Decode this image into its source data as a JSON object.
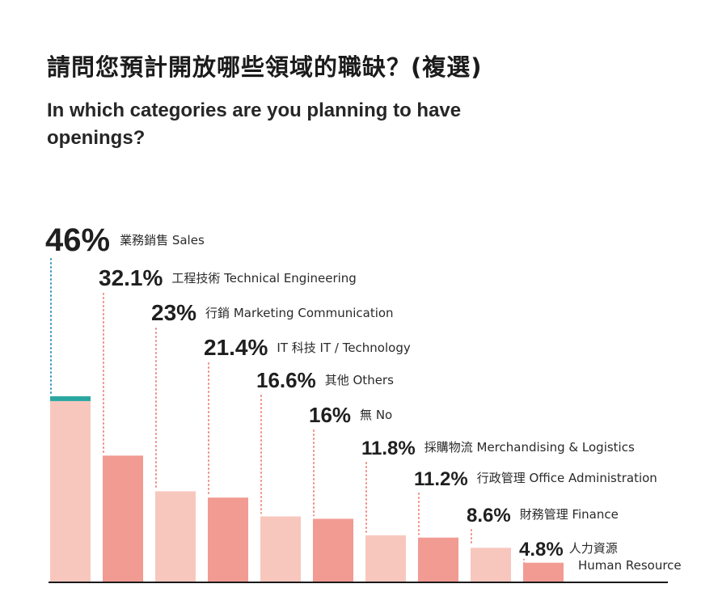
{
  "header": {
    "title_zh": "請問您預計開放哪些領域的職缺？(複選)",
    "title_en": "In which categories are you planning to have openings?"
  },
  "colors": {
    "highlight": "#2aa6a0",
    "bar_light": "#f7c7bd",
    "bar_dark": "#f29b92",
    "dots_highlight": "#3b9bb8",
    "dots": "#ef8f86",
    "baseline": "#1a1a1a"
  },
  "chart_data": {
    "type": "bar",
    "categories": [
      "業務銷售 Sales",
      "工程技術 Technical Engineering",
      "行銷 Marketing Communication",
      "IT 科技 IT / Technology",
      "其他 Others",
      "無 No",
      "採購物流 Merchandising & Logistics",
      "行政管理 Office Administration",
      "財務管理 Finance",
      "人力資源 Human Resource"
    ],
    "labels": [
      "46%",
      "32.1%",
      "23%",
      "21.4%",
      "16.6%",
      "16%",
      "11.8%",
      "11.2%",
      "8.6%",
      "4.8%"
    ],
    "values": [
      46,
      32.1,
      23,
      21.4,
      16.6,
      16,
      11.8,
      11.2,
      8.6,
      4.8
    ],
    "ylim": [
      0,
      50
    ],
    "grid": false,
    "legend": "none"
  }
}
